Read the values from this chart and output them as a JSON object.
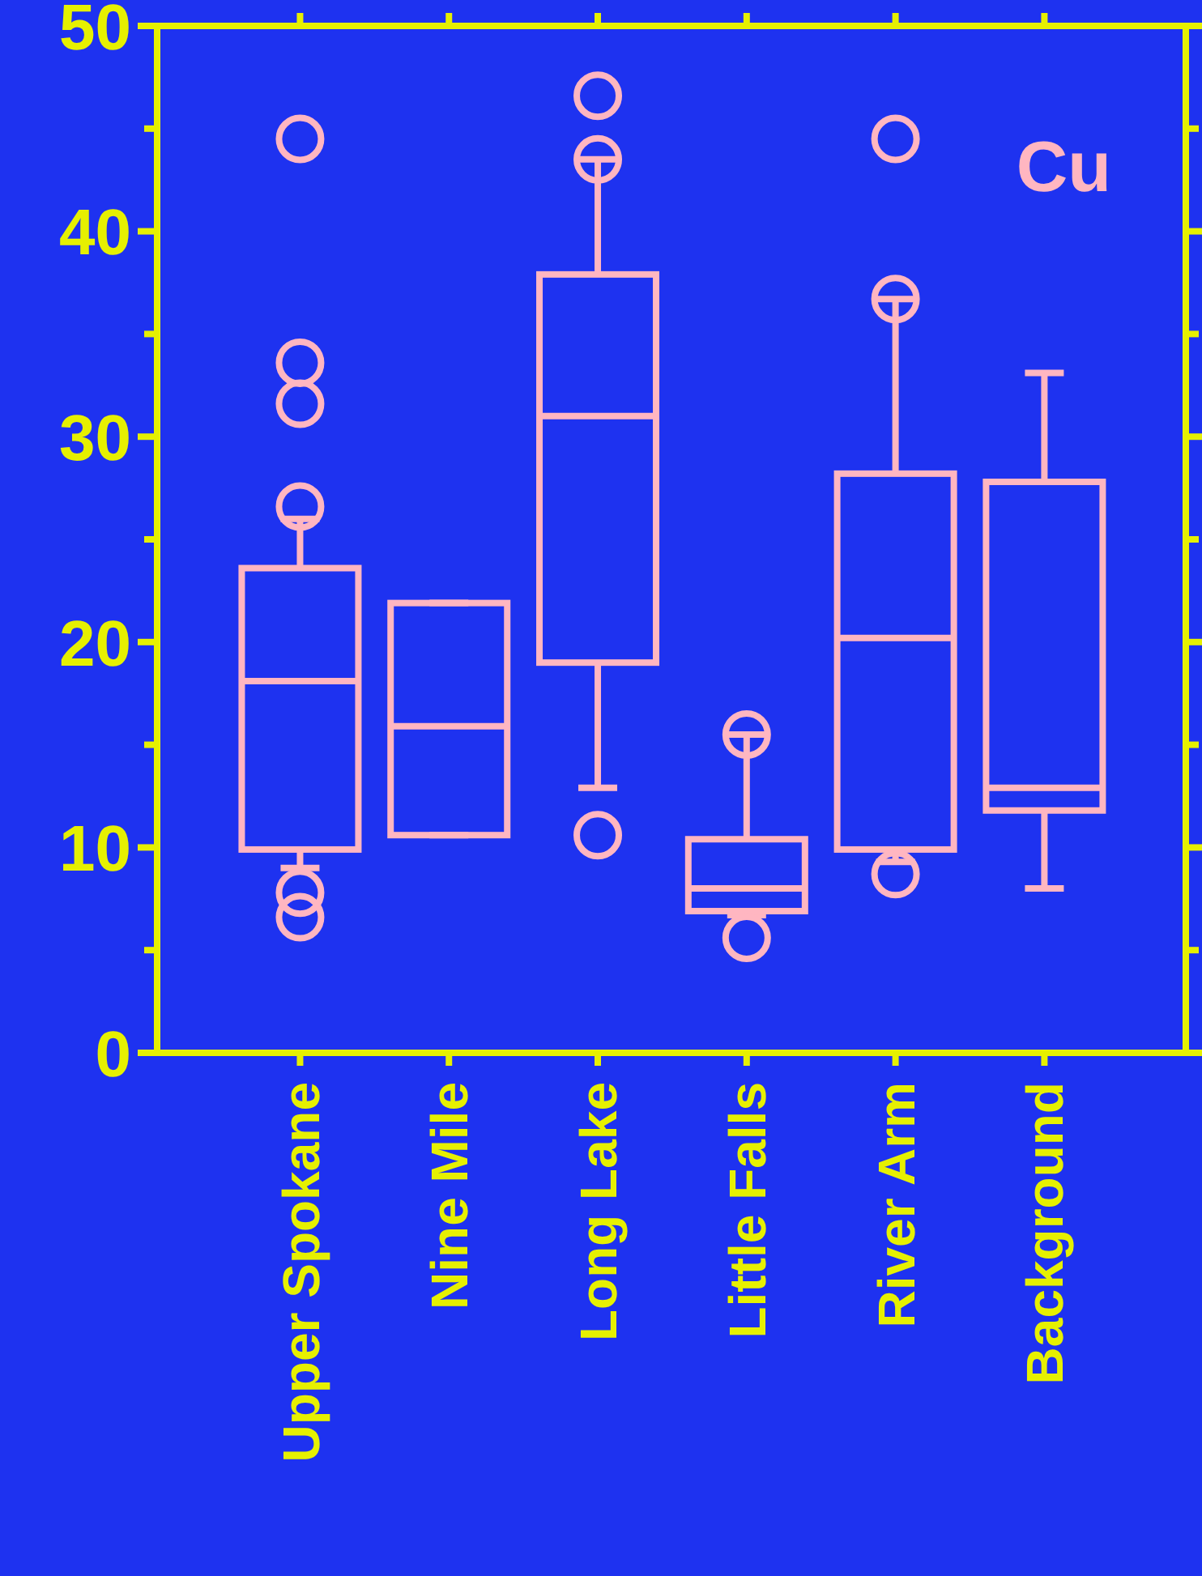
{
  "chart_data": {
    "type": "box",
    "categories": [
      "Upper Spokane",
      "Nine Mile",
      "Long Lake",
      "Little Falls",
      "River Arm",
      "Background"
    ],
    "color": "#ffb6c1",
    "marker": "circle",
    "ylim": [
      0,
      50
    ],
    "yticks": [
      0,
      10,
      20,
      30,
      40,
      50
    ],
    "grid": false,
    "annotations": [
      "Cu"
    ],
    "boxes": [
      {
        "low": 9.0,
        "q1": 9.9,
        "median": 18.1,
        "q3": 23.6,
        "high": 26.0,
        "outliers": [
          44.5,
          33.6,
          31.6,
          26.6,
          7.8,
          6.6
        ]
      },
      {
        "low": 10.6,
        "q1": 10.6,
        "median": 15.9,
        "q3": 21.9,
        "high": 21.9
      },
      {
        "low": 12.9,
        "q1": 19.0,
        "median": 31.0,
        "q3": 37.9,
        "high": 43.5,
        "outliers": [
          46.6,
          43.5,
          10.6
        ]
      },
      {
        "low": 6.7,
        "q1": 6.9,
        "median": 8.0,
        "q3": 10.4,
        "high": 15.5,
        "outliers": [
          15.5,
          5.6
        ]
      },
      {
        "low": 9.3,
        "q1": 9.9,
        "median": 20.2,
        "q3": 28.2,
        "high": 36.7,
        "outliers": [
          44.5,
          36.7,
          8.7
        ]
      },
      {
        "low": 8.0,
        "q1": 11.8,
        "median": 12.9,
        "q3": 27.8,
        "high": 33.1
      }
    ]
  }
}
